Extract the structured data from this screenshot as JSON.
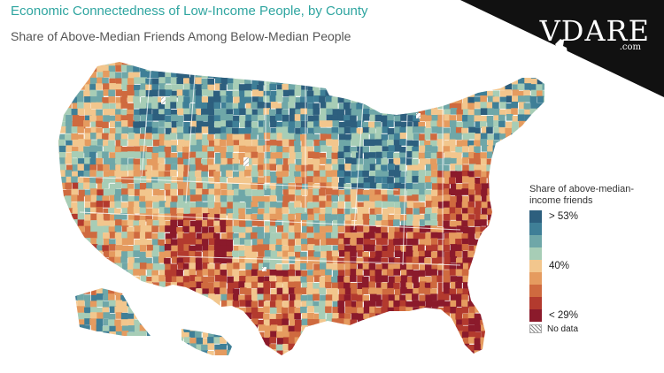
{
  "title": "Economic Connectedness of Low-Income People, by County",
  "subtitle": "Share of Above-Median Friends Among Below-Median People",
  "logo": {
    "text": "VDARE",
    "domain": ".com"
  },
  "legend": {
    "title": "Share of above-median-income friends",
    "label_high": "> 53%",
    "label_mid": "40%",
    "label_low": "< 29%",
    "no_data_label": "No data",
    "colors": [
      "#2d5f7e",
      "#3f7f97",
      "#6fa7a8",
      "#a7cdb6",
      "#f2c68d",
      "#e59b5f",
      "#cf6a3f",
      "#b33a2e",
      "#8b1a2b"
    ]
  }
}
